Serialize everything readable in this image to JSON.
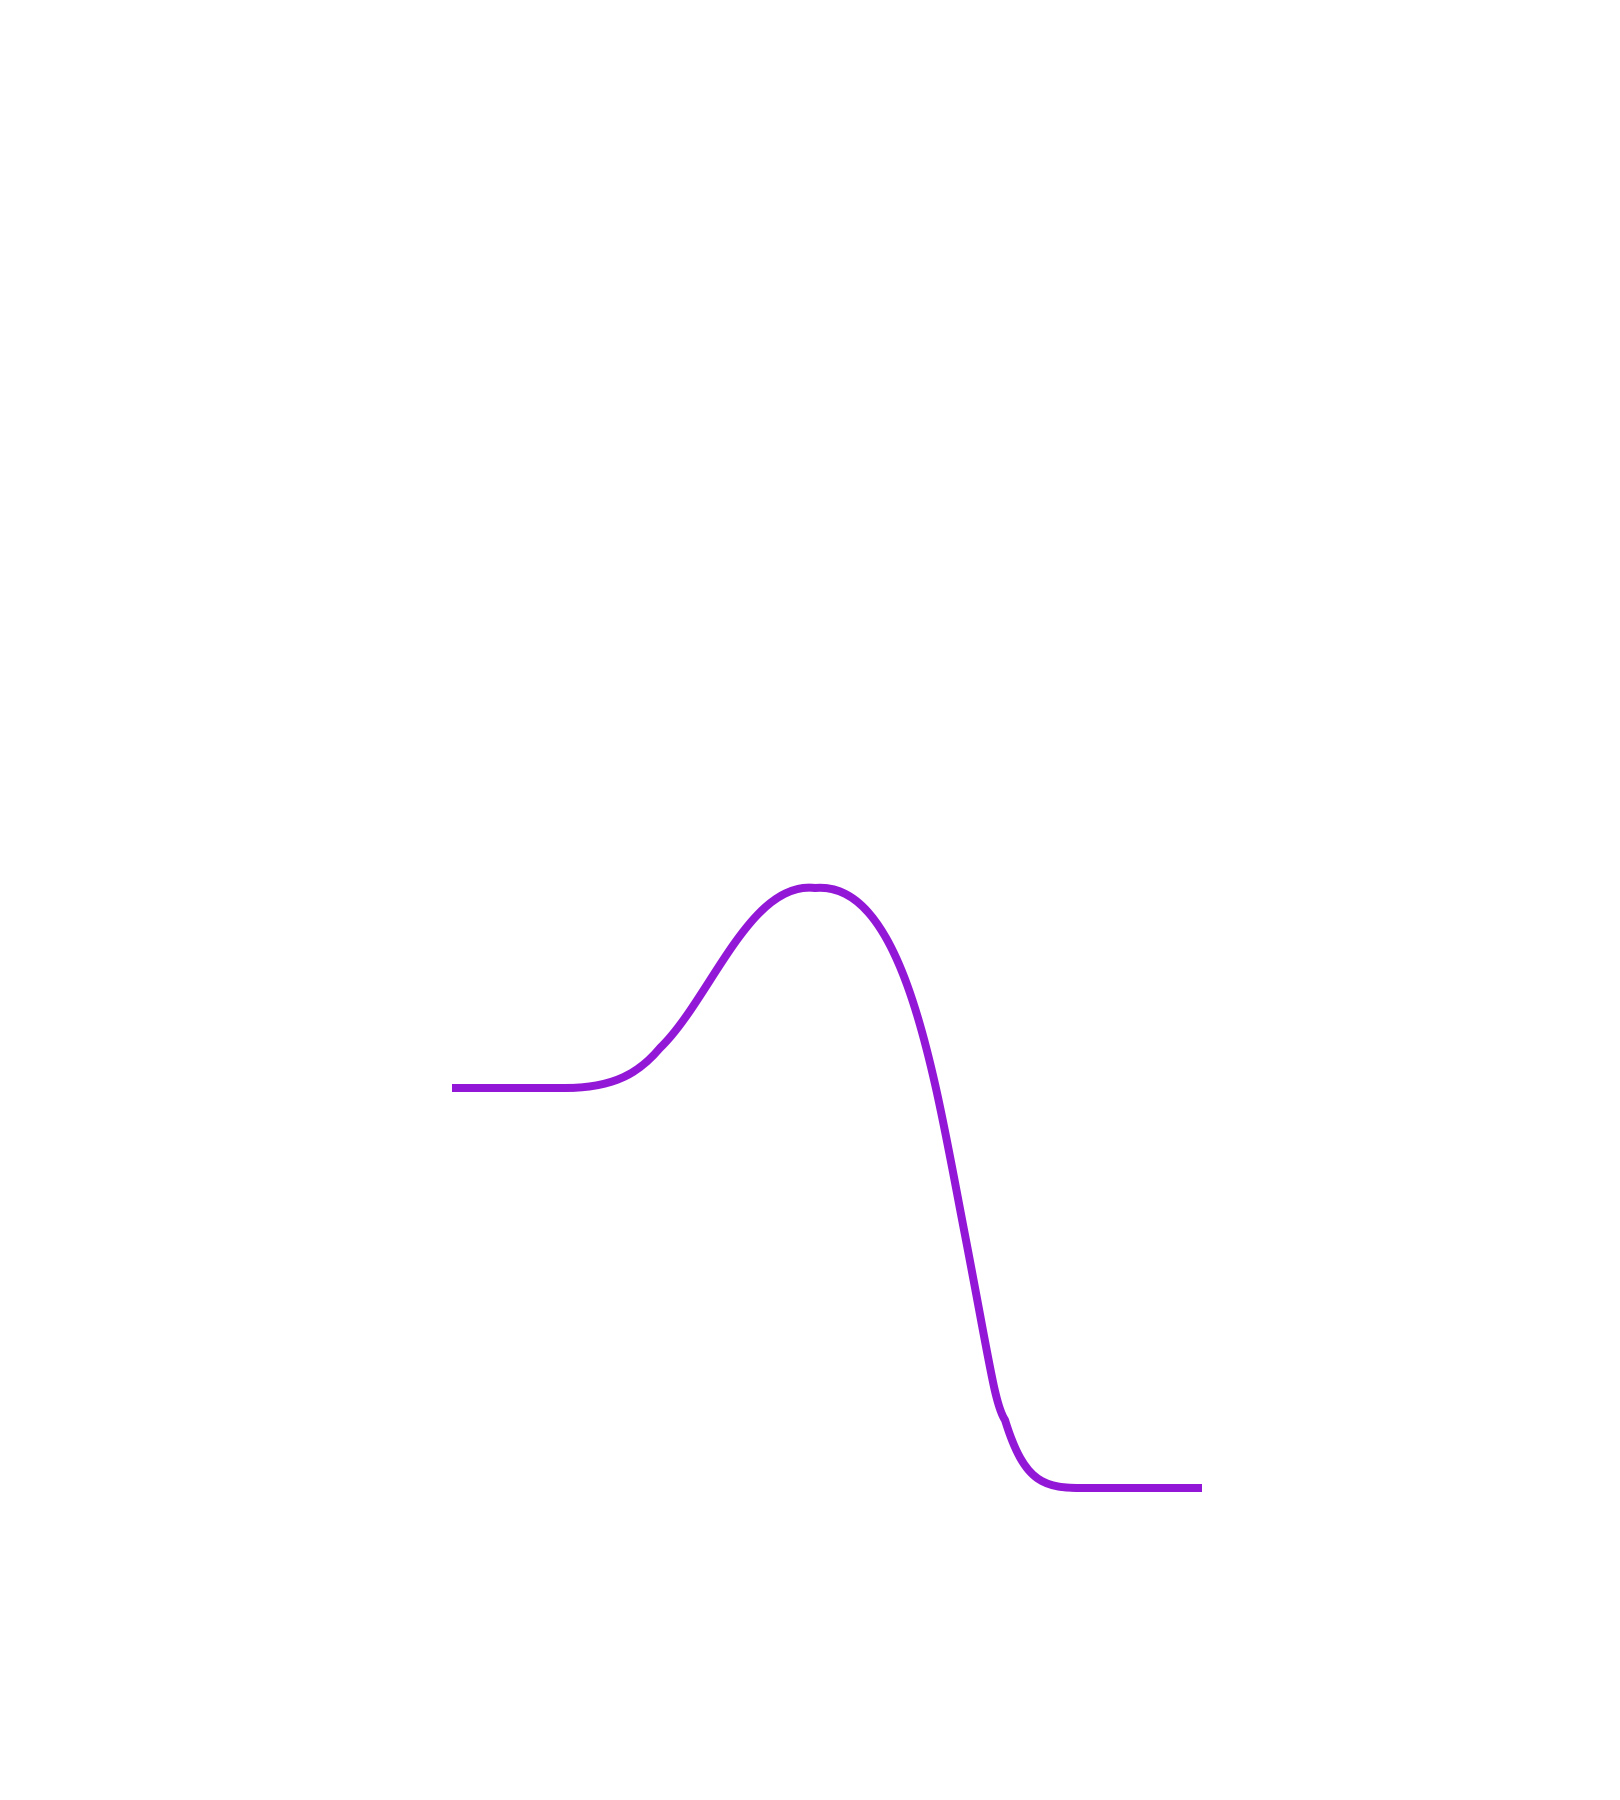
{
  "diagram": {
    "curve": {
      "stroke_color": "#9217D6"
    }
  }
}
